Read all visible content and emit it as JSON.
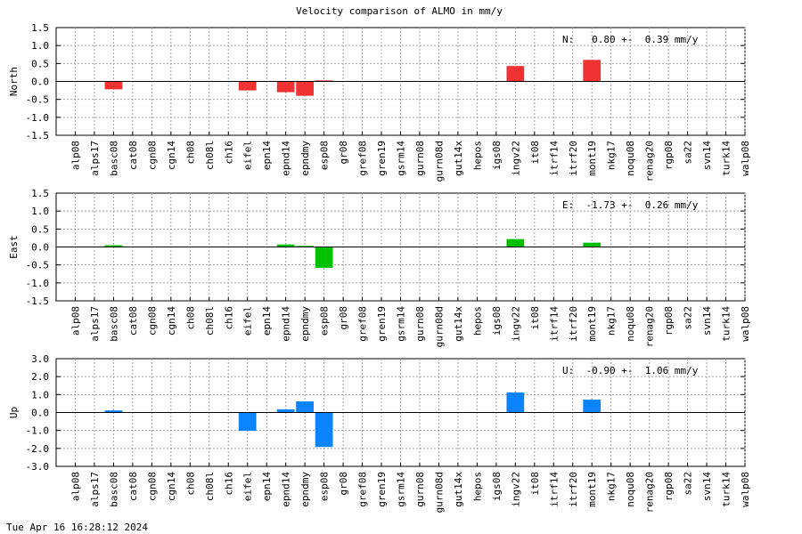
{
  "chart_data": {
    "type": "bar",
    "title": "Velocity comparison of ALMO in mm/y",
    "categories": [
      "alp08",
      "alps17",
      "basc08",
      "cat08",
      "cgn08",
      "cgn14",
      "ch08",
      "ch08l",
      "ch16",
      "eifel",
      "epn14",
      "epnd14",
      "epndmy",
      "esp08",
      "gr08",
      "gref08",
      "gren19",
      "gsrm14",
      "gurn08",
      "gurn08d",
      "gut14x",
      "hepos",
      "igs08",
      "ingv22",
      "it08",
      "itrf14",
      "itrf20",
      "mont19",
      "nkg17",
      "noqu08",
      "renag20",
      "rgp08",
      "sa22",
      "svn14",
      "turk14",
      "walp08"
    ],
    "panels": [
      {
        "ylabel": "North",
        "color": "#f03232",
        "ylim": [
          -1.5,
          1.5
        ],
        "yticks": [
          "1.5",
          "1.0",
          "0.5",
          "0.0",
          "-0.5",
          "-1.0",
          "-1.5"
        ],
        "annotation": "N:   0.80 +-  0.39 mm/y",
        "values": [
          0,
          0,
          -0.22,
          0,
          0,
          0,
          0,
          0,
          0,
          -0.25,
          0,
          -0.3,
          -0.4,
          0.02,
          0,
          0,
          0,
          0,
          0,
          0,
          0,
          0,
          0,
          0.43,
          0,
          0,
          0,
          0.6,
          0,
          0,
          0,
          0,
          0,
          0,
          0,
          0
        ]
      },
      {
        "ylabel": "East",
        "color": "#00c000",
        "ylim": [
          -1.5,
          1.5
        ],
        "yticks": [
          "1.5",
          "1.0",
          "0.5",
          "0.0",
          "-0.5",
          "-1.0",
          "-1.5"
        ],
        "annotation": "E:  -1.73 +-  0.26 mm/y",
        "values": [
          0,
          0,
          0.05,
          0,
          0,
          0,
          0,
          0,
          0,
          0,
          0,
          0.07,
          0.02,
          -0.58,
          0,
          0,
          0,
          0,
          0,
          0,
          0,
          0,
          0,
          0.22,
          0,
          0,
          0,
          0.12,
          0,
          0,
          0,
          0,
          0,
          0,
          0,
          0
        ]
      },
      {
        "ylabel": "Up",
        "color": "#0a84ff",
        "ylim": [
          -3.0,
          3.0
        ],
        "yticks": [
          "3.0",
          "2.0",
          "1.0",
          "0.0",
          "-1.0",
          "-2.0",
          "-3.0"
        ],
        "annotation": "U:  -0.90 +-  1.06 mm/y",
        "values": [
          0,
          0,
          0.12,
          0,
          0,
          0,
          0,
          0,
          0,
          -1.02,
          0,
          0.18,
          0.62,
          -1.92,
          0,
          0,
          0,
          0,
          0,
          0,
          0,
          0,
          0,
          1.12,
          0,
          0,
          0,
          0.72,
          0,
          0,
          0,
          0,
          0,
          0,
          0,
          0
        ]
      }
    ],
    "grid": true
  },
  "footer": {
    "timestamp": "Tue Apr 16 16:28:12 2024"
  }
}
